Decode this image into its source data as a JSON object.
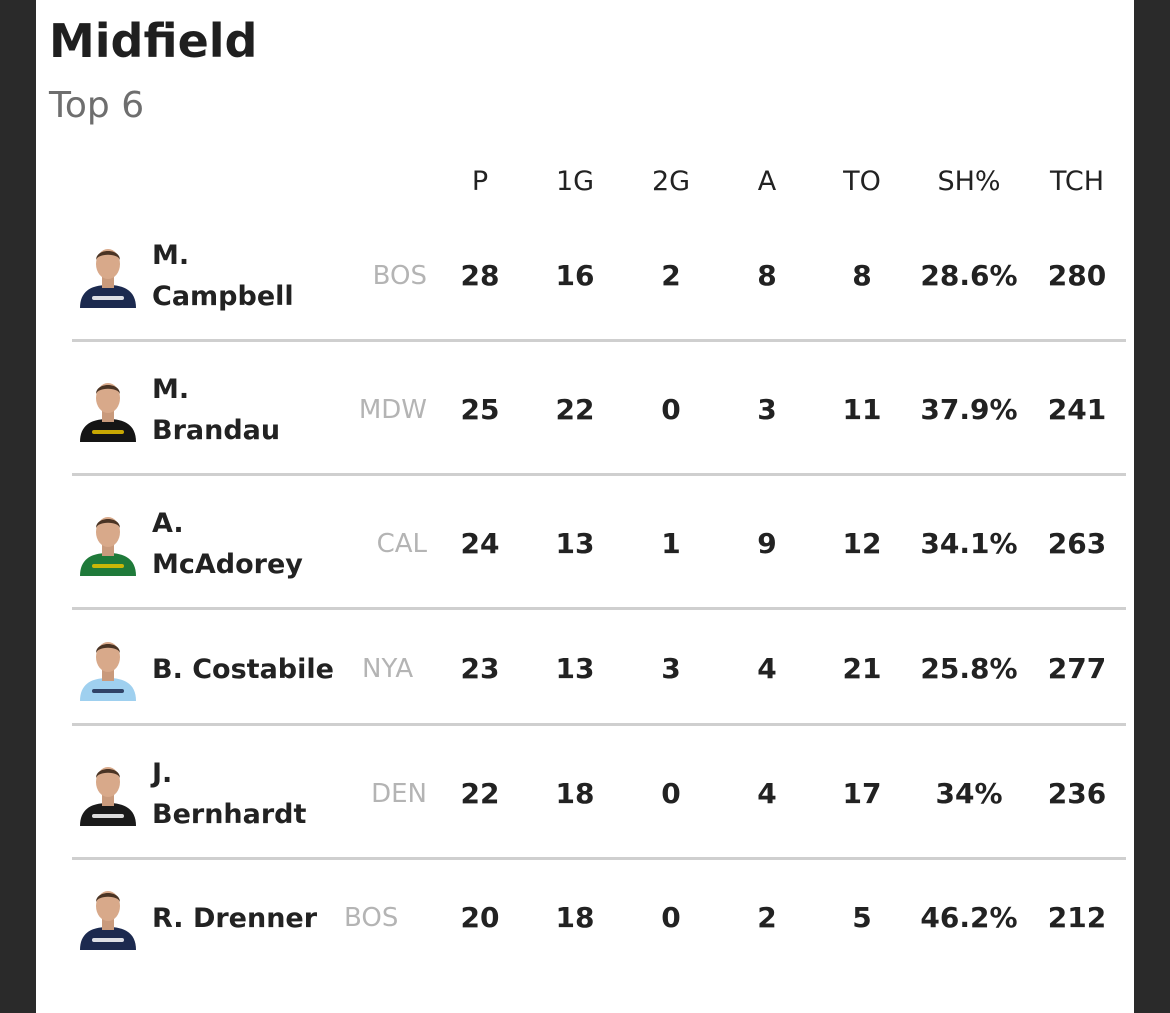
{
  "title": "Midfield",
  "subtitle": "Top 6",
  "columns": [
    "P",
    "1G",
    "2G",
    "A",
    "TO",
    "SH%",
    "TCH"
  ],
  "players": [
    {
      "name_line1": "M.",
      "name_line2": "Campbell",
      "team": "BOS",
      "jersey": "#1c2a4f",
      "accent": "#ffffff",
      "stats": [
        "28",
        "16",
        "2",
        "8",
        "8",
        "28.6%",
        "280"
      ]
    },
    {
      "name_line1": "M.",
      "name_line2": "Brandau",
      "team": "MDW",
      "jersey": "#151515",
      "accent": "#e8c200",
      "stats": [
        "25",
        "22",
        "0",
        "3",
        "11",
        "37.9%",
        "241"
      ]
    },
    {
      "name_line1": "A.",
      "name_line2": "McAdorey",
      "team": "CAL",
      "jersey": "#1f7a3a",
      "accent": "#e8c200",
      "stats": [
        "24",
        "13",
        "1",
        "9",
        "12",
        "34.1%",
        "263"
      ]
    },
    {
      "name_line1": "B. Costabile",
      "name_line2": "",
      "team": "NYA",
      "jersey": "#9fd0ef",
      "accent": "#1c2a4f",
      "stats": [
        "23",
        "13",
        "3",
        "4",
        "21",
        "25.8%",
        "277"
      ]
    },
    {
      "name_line1": "J.",
      "name_line2": "Bernhardt",
      "team": "DEN",
      "jersey": "#1a1a1a",
      "accent": "#ffffff",
      "stats": [
        "22",
        "18",
        "0",
        "4",
        "17",
        "34%",
        "236"
      ]
    },
    {
      "name_line1": "R. Drenner",
      "name_line2": "",
      "team": "BOS",
      "jersey": "#1c2a4f",
      "accent": "#ffffff",
      "stats": [
        "20",
        "18",
        "0",
        "2",
        "5",
        "46.2%",
        "212"
      ]
    }
  ]
}
